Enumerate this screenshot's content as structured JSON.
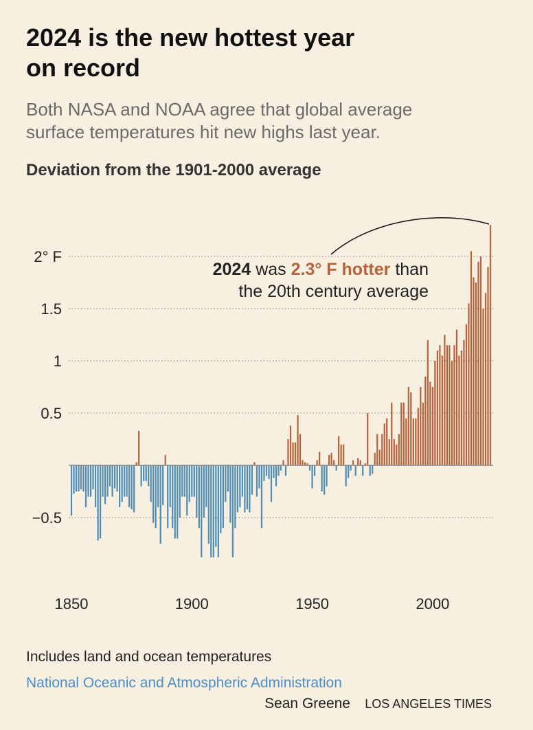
{
  "chart_data": {
    "type": "bar",
    "title_lines": [
      "2024 is the new hottest year",
      "on record"
    ],
    "subtitle_lines": [
      "Both NASA and NOAA agree that global average",
      "surface temperatures hit new highs last year."
    ],
    "y_axis_label": "Deviation from the 1901-2000 average",
    "annotation": {
      "year": "2024",
      "was": "was",
      "highlight": "2.3° F hotter",
      "than": "than",
      "line2": "the 20th century average"
    },
    "x": [
      1850,
      1851,
      1852,
      1853,
      1854,
      1855,
      1856,
      1857,
      1858,
      1859,
      1860,
      1861,
      1862,
      1863,
      1864,
      1865,
      1866,
      1867,
      1868,
      1869,
      1870,
      1871,
      1872,
      1873,
      1874,
      1875,
      1876,
      1877,
      1878,
      1879,
      1880,
      1881,
      1882,
      1883,
      1884,
      1885,
      1886,
      1887,
      1888,
      1889,
      1890,
      1891,
      1892,
      1893,
      1894,
      1895,
      1896,
      1897,
      1898,
      1899,
      1900,
      1901,
      1902,
      1903,
      1904,
      1905,
      1906,
      1907,
      1908,
      1909,
      1910,
      1911,
      1912,
      1913,
      1914,
      1915,
      1916,
      1917,
      1918,
      1919,
      1920,
      1921,
      1922,
      1923,
      1924,
      1925,
      1926,
      1927,
      1928,
      1929,
      1930,
      1931,
      1932,
      1933,
      1934,
      1935,
      1936,
      1937,
      1938,
      1939,
      1940,
      1941,
      1942,
      1943,
      1944,
      1945,
      1946,
      1947,
      1948,
      1949,
      1950,
      1951,
      1952,
      1953,
      1954,
      1955,
      1956,
      1957,
      1958,
      1959,
      1960,
      1961,
      1962,
      1963,
      1964,
      1965,
      1966,
      1967,
      1968,
      1969,
      1970,
      1971,
      1972,
      1973,
      1974,
      1975,
      1976,
      1977,
      1978,
      1979,
      1980,
      1981,
      1982,
      1983,
      1984,
      1985,
      1986,
      1987,
      1988,
      1989,
      1990,
      1991,
      1992,
      1993,
      1994,
      1995,
      1996,
      1997,
      1998,
      1999,
      2000,
      2001,
      2002,
      2003,
      2004,
      2005,
      2006,
      2007,
      2008,
      2009,
      2010,
      2011,
      2012,
      2013,
      2014,
      2015,
      2016,
      2017,
      2018,
      2019,
      2020,
      2021,
      2022,
      2023,
      2024
    ],
    "values": [
      -0.48,
      -0.27,
      -0.25,
      -0.25,
      -0.23,
      -0.25,
      -0.4,
      -0.3,
      -0.3,
      -0.23,
      -0.4,
      -0.72,
      -0.7,
      -0.3,
      -0.37,
      -0.3,
      -0.2,
      -0.3,
      -0.22,
      -0.25,
      -0.4,
      -0.35,
      -0.3,
      -0.3,
      -0.4,
      -0.42,
      -0.45,
      0.03,
      0.33,
      -0.2,
      -0.15,
      -0.15,
      -0.2,
      -0.35,
      -0.55,
      -0.6,
      -0.4,
      -0.75,
      -0.38,
      0.1,
      -0.6,
      -0.4,
      -0.6,
      -0.7,
      -0.7,
      -0.5,
      -0.3,
      -0.3,
      -0.48,
      -0.35,
      -0.3,
      -0.3,
      -0.5,
      -0.6,
      -0.88,
      -0.5,
      -0.4,
      -0.75,
      -0.88,
      -0.88,
      -0.78,
      -0.88,
      -0.65,
      -0.6,
      -0.35,
      -0.25,
      -0.55,
      -0.88,
      -0.6,
      -0.45,
      -0.4,
      -0.3,
      -0.45,
      -0.42,
      -0.45,
      -0.28,
      0.03,
      -0.3,
      -0.22,
      -0.6,
      -0.15,
      -0.1,
      -0.13,
      -0.35,
      -0.12,
      -0.2,
      -0.1,
      -0.05,
      0.05,
      -0.1,
      0.25,
      0.38,
      0.22,
      0.22,
      0.48,
      0.3,
      0.05,
      0.03,
      0.02,
      -0.05,
      -0.22,
      -0.1,
      0.05,
      0.13,
      -0.25,
      -0.28,
      -0.2,
      0.1,
      0.12,
      0.05,
      -0.05,
      0.28,
      0.2,
      0.2,
      -0.2,
      -0.12,
      -0.05,
      0.05,
      -0.1,
      0.07,
      0.05,
      -0.1,
      0.02,
      0.5,
      -0.1,
      -0.08,
      0.12,
      0.3,
      0.15,
      0.3,
      0.4,
      0.45,
      0.25,
      0.6,
      0.25,
      0.2,
      0.3,
      0.6,
      0.6,
      0.45,
      0.75,
      0.7,
      0.45,
      0.45,
      0.55,
      0.75,
      0.6,
      0.85,
      1.2,
      0.8,
      0.75,
      1.0,
      1.1,
      1.15,
      1.05,
      1.25,
      1.15,
      1.15,
      1.0,
      1.15,
      1.3,
      1.05,
      1.1,
      1.2,
      1.35,
      1.55,
      2.05,
      1.8,
      1.75,
      1.95,
      2.0,
      1.5,
      1.65,
      1.9,
      2.3
    ],
    "positive_color": "#b5623d",
    "negative_color": "#4d8cb5",
    "xlim": [
      1850,
      2024
    ],
    "xticks": [
      1850,
      1900,
      1950,
      2000
    ],
    "ylim": [
      -1,
      2.5
    ],
    "yticks": [
      {
        "value": -0.5,
        "label": "−0.5"
      },
      0.5,
      1,
      1.5,
      {
        "value": 2,
        "label": "2° F"
      }
    ],
    "grid": true,
    "note": "Includes land and ocean temperatures",
    "source": "National Oceanic and Atmospheric Administration",
    "credit": "Sean Greene",
    "publisher": "LOS ANGELES TIMES"
  }
}
